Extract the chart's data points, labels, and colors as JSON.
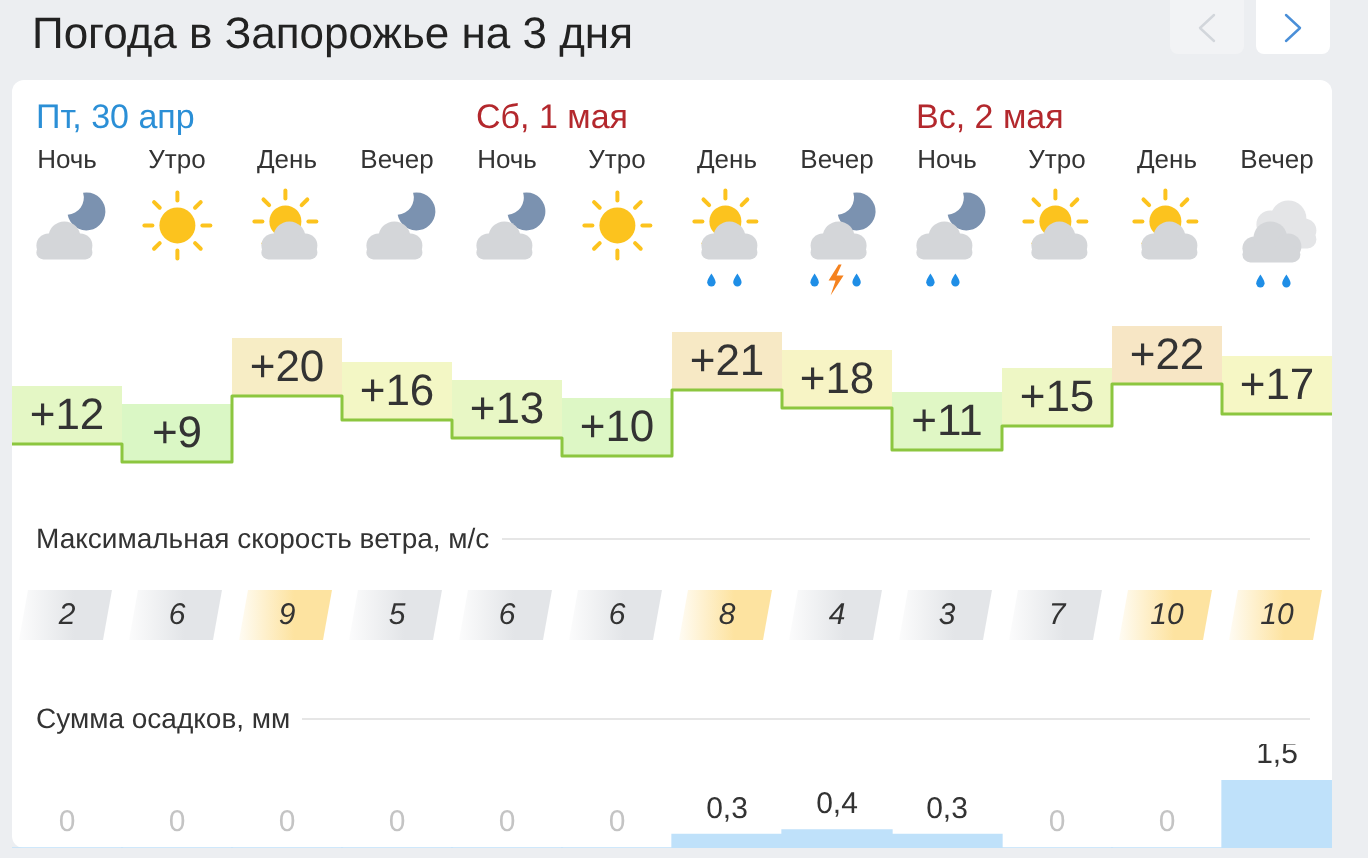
{
  "chart_data": [
    {
      "type": "step",
      "title": "Погода в Запорожье на 3 дня",
      "categories": [
        "Ночь",
        "Утро",
        "День",
        "Вечер",
        "Ночь",
        "Утро",
        "День",
        "Вечер",
        "Ночь",
        "Утро",
        "День",
        "Вечер"
      ],
      "annotations": [
        "Пт, 30 апр",
        "Сб, 1 мая",
        "Вс, 2 мая"
      ],
      "values": [
        12,
        9,
        20,
        16,
        13,
        10,
        21,
        18,
        11,
        15,
        22,
        17
      ],
      "value_labels": [
        "+12",
        "+9",
        "+20",
        "+16",
        "+13",
        "+10",
        "+21",
        "+18",
        "+11",
        "+15",
        "+22",
        "+17"
      ],
      "color": "#8cc63f"
    },
    {
      "type": "other",
      "title": "Максимальная скорость ветра, м/с",
      "values": [
        2,
        6,
        9,
        5,
        6,
        6,
        8,
        4,
        3,
        7,
        10,
        10
      ],
      "colors": [
        "#e3e5e8",
        "#e3e5e8",
        "#fde3a0",
        "#e3e5e8",
        "#e3e5e8",
        "#e3e5e8",
        "#fde3a0",
        "#e3e5e8",
        "#e3e5e8",
        "#e3e5e8",
        "#fde3a0",
        "#fde3a0"
      ],
      "data_labels": true
    },
    {
      "type": "bar",
      "title": "Сумма осадков, мм",
      "categories": [
        null,
        null,
        null,
        null,
        null,
        null,
        null,
        null,
        null,
        null,
        null,
        null
      ],
      "values": [
        0,
        0,
        0,
        0,
        0,
        0,
        0.3,
        0.4,
        0.3,
        0,
        0,
        1.5
      ],
      "value_labels": [
        "0",
        "0",
        "0",
        "0",
        "0",
        "0",
        "0,3",
        "0,4",
        "0,3",
        "0",
        "0",
        "1,5"
      ],
      "color": "#bfe1fa"
    }
  ]
}
